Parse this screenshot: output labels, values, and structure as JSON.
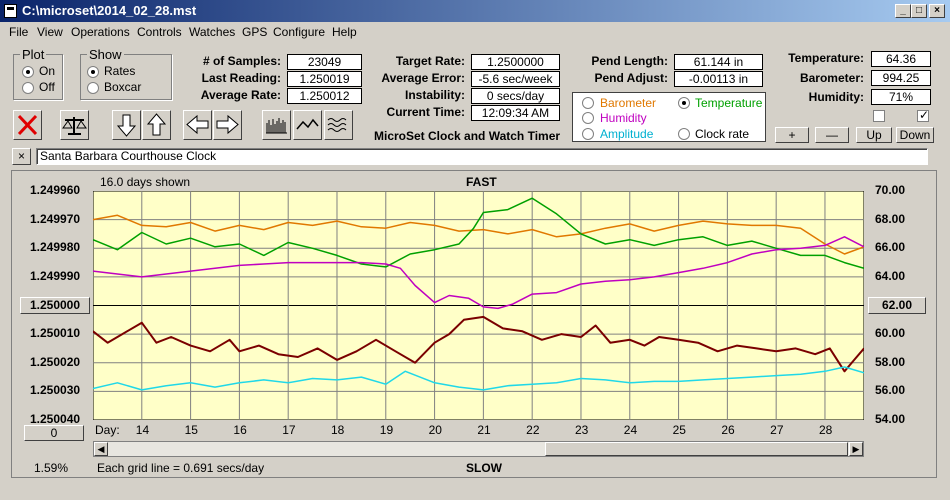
{
  "window": {
    "title": "C:\\microset\\2014_02_28.mst",
    "min": "_",
    "max": "□",
    "close": "×"
  },
  "menu": [
    "File",
    "View",
    "Operations",
    "Controls",
    "Watches",
    "GPS",
    "Configure",
    "Help"
  ],
  "plot_group": {
    "title": "Plot",
    "options": [
      "On",
      "Off"
    ],
    "selected": "On"
  },
  "show_group": {
    "title": "Show",
    "options": [
      "Rates",
      "Boxcar"
    ],
    "selected": "Rates"
  },
  "stats": {
    "samples_label": "# of Samples:",
    "samples": "23049",
    "last_label": "Last Reading:",
    "last": "1.250019",
    "avg_label": "Average Rate:",
    "avg": "1.250012",
    "target_label": "Target Rate:",
    "target": "1.2500000",
    "err_label": "Average Error:",
    "err": "-5.6 sec/week",
    "instab_label": "Instability:",
    "instab": "0 secs/day",
    "time_label": "Current Time:",
    "time": "12:09:34 AM",
    "pendlen_label": "Pend Length:",
    "pendlen": "61.144 in",
    "pendadj_label": "Pend Adjust:",
    "pendadj": "-0.00113 in",
    "temp_label": "Temperature:",
    "temp": "64.36",
    "baro_label": "Barometer:",
    "baro": "994.25",
    "hum_label": "Humidity:",
    "hum": "71%"
  },
  "app_label": "MicroSet Clock and Watch Timer",
  "series_options": [
    {
      "label": "Barometer",
      "color": "#e07800",
      "selected": false
    },
    {
      "label": "Temperature",
      "color": "#00a000",
      "selected": true
    },
    {
      "label": "Humidity",
      "color": "#c000c0",
      "selected": false
    },
    {
      "label": "Clock rate",
      "color": "#000000",
      "selected": false
    },
    {
      "label": "Amplitude",
      "color": "#00b0d0",
      "selected": false
    }
  ],
  "adjust_buttons": [
    "+",
    "—",
    "Up",
    "Down"
  ],
  "clock_name": "Santa Barbara Courthouse Clock",
  "close_x": "×",
  "chart_data": {
    "type": "line",
    "days_shown": "16.0 days shown",
    "top_label": "FAST",
    "bottom_label": "SLOW",
    "grid_note": "Each grid line = 0.691 secs/day",
    "percent": "1.59%",
    "left_button": "1.250000",
    "right_button": "62.00",
    "zero_button": "0",
    "x_prefix": "Day:",
    "x_ticks": [
      "14",
      "15",
      "16",
      "17",
      "18",
      "19",
      "20",
      "21",
      "22",
      "23",
      "24",
      "25",
      "26",
      "27",
      "28"
    ],
    "x_range": [
      13.0,
      28.8
    ],
    "y_left_ticks": [
      "1.249960",
      "1.249970",
      "1.249980",
      "1.249990",
      "1.250000",
      "1.250010",
      "1.250020",
      "1.250030",
      "1.250040"
    ],
    "y_left_range": [
      1.24996,
      1.25004
    ],
    "y_right_ticks": [
      "70.00",
      "68.00",
      "66.00",
      "64.00",
      "62.00",
      "60.00",
      "58.00",
      "56.00",
      "54.00"
    ],
    "y_right_range": [
      70,
      54
    ],
    "series": [
      {
        "name": "Barometer",
        "color": "#e07800",
        "axis": "right",
        "x": [
          13.0,
          13.5,
          14.0,
          14.5,
          15.0,
          15.5,
          16.0,
          16.5,
          17.0,
          17.5,
          18.0,
          18.5,
          19.0,
          19.5,
          20.0,
          20.5,
          21.0,
          21.5,
          22.0,
          22.5,
          23.0,
          23.5,
          24.0,
          24.5,
          25.0,
          25.5,
          26.0,
          26.5,
          27.0,
          27.5,
          28.0,
          28.4,
          28.8
        ],
        "y": [
          68.0,
          68.3,
          67.6,
          67.5,
          67.8,
          67.2,
          67.6,
          67.3,
          67.8,
          67.6,
          67.9,
          67.5,
          67.4,
          67.8,
          67.6,
          67.2,
          67.3,
          67.0,
          67.3,
          66.8,
          67.0,
          67.4,
          67.7,
          67.2,
          67.6,
          67.9,
          67.7,
          67.6,
          67.6,
          67.4,
          66.3,
          65.6,
          66.1
        ]
      },
      {
        "name": "Temperature",
        "color": "#00a000",
        "axis": "right",
        "x": [
          13.0,
          13.5,
          14.0,
          14.5,
          15.0,
          15.5,
          16.0,
          16.5,
          17.0,
          17.5,
          18.0,
          18.5,
          19.0,
          19.5,
          20.0,
          20.5,
          20.8,
          21.0,
          21.5,
          22.0,
          22.5,
          23.0,
          23.5,
          24.0,
          24.5,
          25.0,
          25.5,
          26.0,
          26.5,
          27.0,
          27.5,
          28.0,
          28.4,
          28.8
        ],
        "y": [
          66.6,
          65.9,
          67.1,
          66.3,
          66.7,
          66.1,
          66.3,
          65.5,
          66.4,
          66.0,
          65.5,
          64.9,
          64.7,
          65.6,
          65.9,
          66.3,
          67.4,
          68.5,
          68.7,
          69.5,
          68.4,
          67.0,
          66.3,
          66.6,
          66.2,
          66.6,
          66.8,
          66.2,
          66.5,
          66.0,
          65.5,
          65.5,
          65.0,
          64.6
        ]
      },
      {
        "name": "Humidity",
        "color": "#c000c0",
        "axis": "right",
        "x": [
          13.0,
          13.5,
          14.0,
          14.5,
          15.0,
          15.5,
          16.0,
          16.5,
          17.0,
          17.5,
          18.0,
          18.5,
          19.0,
          19.3,
          19.6,
          20.0,
          20.3,
          20.7,
          21.0,
          21.3,
          21.6,
          22.0,
          22.5,
          23.0,
          23.5,
          24.0,
          24.5,
          25.0,
          25.5,
          26.0,
          26.5,
          27.0,
          27.5,
          28.0,
          28.4,
          28.8
        ],
        "y": [
          64.4,
          64.2,
          64.0,
          64.2,
          64.4,
          64.6,
          64.8,
          64.9,
          65.0,
          65.0,
          65.0,
          65.0,
          64.9,
          64.6,
          63.4,
          62.2,
          62.7,
          62.5,
          61.9,
          61.8,
          62.1,
          62.8,
          62.9,
          63.5,
          63.7,
          63.8,
          64.0,
          64.3,
          64.6,
          65.0,
          65.6,
          65.9,
          66.0,
          66.2,
          66.8,
          66.1
        ]
      },
      {
        "name": "Clock rate",
        "color": "#7a0000",
        "axis": "left",
        "x": [
          13.0,
          13.3,
          13.6,
          14.0,
          14.3,
          14.6,
          15.0,
          15.4,
          15.8,
          16.0,
          16.4,
          16.8,
          17.2,
          17.6,
          18.0,
          18.4,
          18.8,
          19.2,
          19.6,
          20.0,
          20.3,
          20.6,
          21.0,
          21.4,
          21.8,
          22.2,
          22.6,
          23.0,
          23.3,
          23.6,
          24.0,
          24.3,
          24.6,
          25.0,
          25.4,
          25.8,
          26.2,
          26.6,
          27.0,
          27.4,
          27.8,
          28.1,
          28.4,
          28.6,
          28.8
        ],
        "y": [
          1.250009,
          1.250013,
          1.25001,
          1.250006,
          1.250013,
          1.250011,
          1.250014,
          1.250016,
          1.250012,
          1.250016,
          1.250014,
          1.250017,
          1.250018,
          1.250015,
          1.250019,
          1.250016,
          1.250012,
          1.250016,
          1.25002,
          1.250013,
          1.25001,
          1.250005,
          1.250004,
          1.250008,
          1.250009,
          1.250012,
          1.25001,
          1.250011,
          1.250007,
          1.250013,
          1.250012,
          1.250014,
          1.250011,
          1.250012,
          1.250013,
          1.250016,
          1.250014,
          1.250015,
          1.250016,
          1.250015,
          1.250017,
          1.250015,
          1.250023,
          1.250019,
          1.250015
        ]
      },
      {
        "name": "Amplitude",
        "color": "#20d8e8",
        "axis": "right",
        "x": [
          13.0,
          13.5,
          14.0,
          14.5,
          15.0,
          15.5,
          16.0,
          16.5,
          17.0,
          17.5,
          18.0,
          18.5,
          19.0,
          19.4,
          20.0,
          20.5,
          21.0,
          21.5,
          22.0,
          22.5,
          23.0,
          23.5,
          24.0,
          24.5,
          25.0,
          25.5,
          26.0,
          26.5,
          27.0,
          27.5,
          28.0,
          28.4,
          28.8
        ],
        "y": [
          56.2,
          56.6,
          56.1,
          56.4,
          56.6,
          56.3,
          56.6,
          56.8,
          56.6,
          56.9,
          56.8,
          57.0,
          56.5,
          57.4,
          56.6,
          56.3,
          56.1,
          56.4,
          56.5,
          56.6,
          56.9,
          56.8,
          56.6,
          56.7,
          56.7,
          56.8,
          56.9,
          57.0,
          57.1,
          57.2,
          57.4,
          57.7,
          57.3
        ]
      }
    ]
  }
}
